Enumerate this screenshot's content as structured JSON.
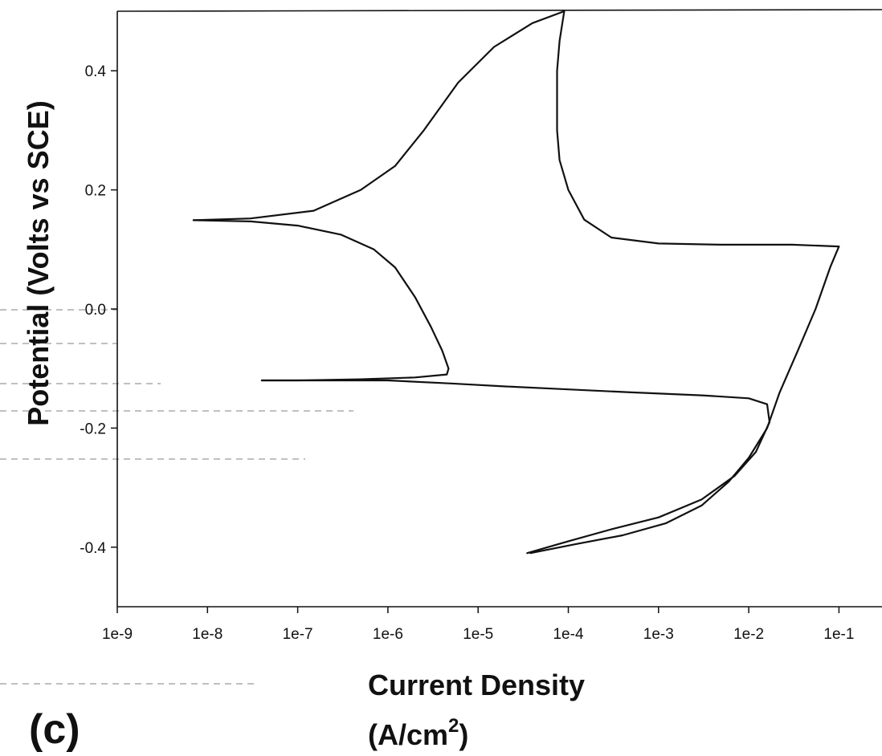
{
  "chart_data": {
    "type": "line",
    "panel_label": "(c)",
    "xlabel_line1": "Current Density",
    "xlabel_line2_pre": "(A/cm",
    "xlabel_line2_sup": "2",
    "xlabel_line2_post": ")",
    "ylabel": "Potential (Volts vs SCE)",
    "x_scale": "log",
    "xlim": [
      1e-09,
      0.3
    ],
    "ylim": [
      -0.5,
      0.5
    ],
    "grid": false,
    "legend": "none",
    "x_ticks": [
      {
        "value": 1e-09,
        "label": "1e-9"
      },
      {
        "value": 1e-08,
        "label": "1e-8"
      },
      {
        "value": 1e-07,
        "label": "1e-7"
      },
      {
        "value": 1e-06,
        "label": "1e-6"
      },
      {
        "value": 1e-05,
        "label": "1e-5"
      },
      {
        "value": 0.0001,
        "label": "1e-4"
      },
      {
        "value": 0.001,
        "label": "1e-3"
      },
      {
        "value": 0.01,
        "label": "1e-2"
      },
      {
        "value": 0.1,
        "label": "1e-1"
      }
    ],
    "y_ticks": [
      {
        "value": 0.4,
        "label": "0.4"
      },
      {
        "value": 0.2,
        "label": "0.2"
      },
      {
        "value": 0.0,
        "label": "0.0"
      },
      {
        "value": -0.2,
        "label": "-0.2"
      },
      {
        "value": -0.4,
        "label": "-0.4"
      }
    ],
    "series": [
      {
        "color": "#111111",
        "points": [
          [
            3.5e-05,
            -0.41
          ],
          [
            0.0001,
            -0.39
          ],
          [
            0.0003,
            -0.37
          ],
          [
            0.001,
            -0.35
          ],
          [
            0.003,
            -0.32
          ],
          [
            0.007,
            -0.28
          ],
          [
            0.012,
            -0.24
          ],
          [
            0.017,
            -0.19
          ],
          [
            0.016,
            -0.16
          ],
          [
            0.01,
            -0.15
          ],
          [
            0.003,
            -0.145
          ],
          [
            0.0005,
            -0.14
          ],
          [
            0.0001,
            -0.135
          ],
          [
            2e-05,
            -0.13
          ],
          [
            5e-06,
            -0.125
          ],
          [
            1e-06,
            -0.12
          ],
          [
            1e-07,
            -0.12
          ],
          [
            4e-08,
            -0.12
          ]
        ]
      },
      {
        "color": "#111111",
        "points": [
          [
            3.8e-05,
            -0.41
          ],
          [
            0.00012,
            -0.395
          ],
          [
            0.0004,
            -0.38
          ],
          [
            0.0012,
            -0.36
          ],
          [
            0.003,
            -0.33
          ],
          [
            0.006,
            -0.29
          ],
          [
            0.01,
            -0.25
          ],
          [
            0.016,
            -0.2
          ],
          [
            0.022,
            -0.14
          ],
          [
            0.035,
            -0.07
          ],
          [
            0.055,
            0.0
          ],
          [
            0.08,
            0.07
          ],
          [
            0.1,
            0.105
          ],
          [
            0.03,
            0.108
          ],
          [
            0.005,
            0.108
          ],
          [
            0.001,
            0.11
          ],
          [
            0.0003,
            0.12
          ],
          [
            0.00015,
            0.15
          ],
          [
            0.0001,
            0.2
          ],
          [
            8e-05,
            0.25
          ],
          [
            7.5e-05,
            0.3
          ],
          [
            7.5e-05,
            0.35
          ],
          [
            7.5e-05,
            0.4
          ],
          [
            8e-05,
            0.45
          ],
          [
            9e-05,
            0.5
          ],
          [
            4e-05,
            0.48
          ],
          [
            1.5e-05,
            0.44
          ],
          [
            6e-06,
            0.38
          ],
          [
            2.5e-06,
            0.3
          ],
          [
            1.2e-06,
            0.24
          ],
          [
            5e-07,
            0.2
          ],
          [
            1.5e-07,
            0.165
          ],
          [
            3e-08,
            0.152
          ],
          [
            7e-09,
            0.149
          ]
        ]
      },
      {
        "color": "#111111",
        "points": [
          [
            7e-09,
            0.149
          ],
          [
            3e-08,
            0.147
          ],
          [
            1e-07,
            0.14
          ],
          [
            3e-07,
            0.125
          ],
          [
            7e-07,
            0.1
          ],
          [
            1.2e-06,
            0.07
          ],
          [
            2e-06,
            0.02
          ],
          [
            3e-06,
            -0.03
          ],
          [
            4e-06,
            -0.07
          ],
          [
            4.7e-06,
            -0.1
          ],
          [
            4.5e-06,
            -0.11
          ],
          [
            2e-06,
            -0.115
          ],
          [
            5e-07,
            -0.118
          ],
          [
            1e-07,
            -0.12
          ],
          [
            4e-08,
            -0.12
          ]
        ]
      }
    ]
  }
}
